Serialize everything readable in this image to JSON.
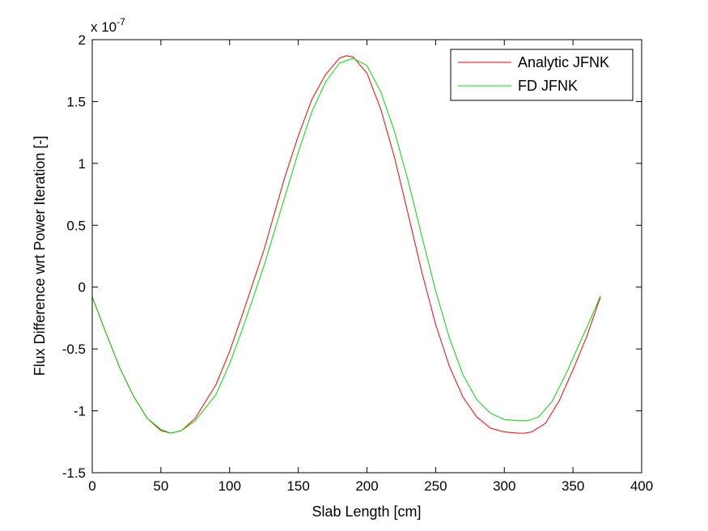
{
  "chart_data": {
    "type": "line",
    "xlabel": "Slab Length [cm]",
    "ylabel": "Flux Difference wrt Power Iteration [-]",
    "y_exponent_label": "x 10",
    "y_exponent_power": "-7",
    "xlim": [
      0,
      400
    ],
    "ylim": [
      -1.5,
      2
    ],
    "xticks": [
      0,
      50,
      100,
      150,
      200,
      250,
      300,
      350,
      400
    ],
    "xtick_labels": [
      "0",
      "50",
      "100",
      "150",
      "200",
      "250",
      "300",
      "350",
      "400"
    ],
    "yticks": [
      -1.5,
      -1,
      -0.5,
      0,
      0.5,
      1,
      1.5,
      2
    ],
    "ytick_labels": [
      "-1.5",
      "-1",
      "-0.5",
      "0",
      "0.5",
      "1",
      "1.5",
      "2"
    ],
    "grid": false,
    "legend_position": "top-right",
    "series": [
      {
        "name": "Analytic JFNK",
        "color": "#ff0000",
        "x": [
          0,
          10,
          20,
          30,
          40,
          50,
          57,
          65,
          75,
          90,
          100,
          110,
          125,
          140,
          150,
          160,
          170,
          180,
          185,
          190,
          200,
          210,
          220,
          230,
          240,
          250,
          260,
          270,
          280,
          290,
          300,
          310,
          315,
          320,
          330,
          340,
          350,
          360,
          370
        ],
        "y": [
          -0.08,
          -0.37,
          -0.65,
          -0.88,
          -1.06,
          -1.16,
          -1.18,
          -1.16,
          -1.06,
          -0.79,
          -0.52,
          -0.2,
          0.3,
          0.88,
          1.22,
          1.52,
          1.72,
          1.85,
          1.87,
          1.86,
          1.73,
          1.44,
          1.05,
          0.59,
          0.12,
          -0.3,
          -0.64,
          -0.89,
          -1.05,
          -1.14,
          -1.17,
          -1.18,
          -1.18,
          -1.17,
          -1.1,
          -0.92,
          -0.67,
          -0.4,
          -0.08
        ]
      },
      {
        "name": "FD JFNK",
        "color": "#00dd00",
        "x": [
          0,
          10,
          20,
          30,
          40,
          50,
          57,
          65,
          75,
          90,
          100,
          110,
          125,
          140,
          150,
          160,
          170,
          180,
          190,
          200,
          210,
          220,
          230,
          240,
          250,
          260,
          270,
          280,
          290,
          300,
          310,
          317,
          325,
          335,
          345,
          355,
          362,
          370
        ],
        "y": [
          -0.08,
          -0.37,
          -0.65,
          -0.88,
          -1.06,
          -1.15,
          -1.18,
          -1.16,
          -1.08,
          -0.87,
          -0.62,
          -0.32,
          0.17,
          0.72,
          1.09,
          1.42,
          1.66,
          1.81,
          1.85,
          1.79,
          1.58,
          1.26,
          0.86,
          0.41,
          -0.03,
          -0.41,
          -0.71,
          -0.91,
          -1.02,
          -1.07,
          -1.08,
          -1.08,
          -1.05,
          -0.92,
          -0.7,
          -0.45,
          -0.28,
          -0.07
        ]
      }
    ]
  }
}
